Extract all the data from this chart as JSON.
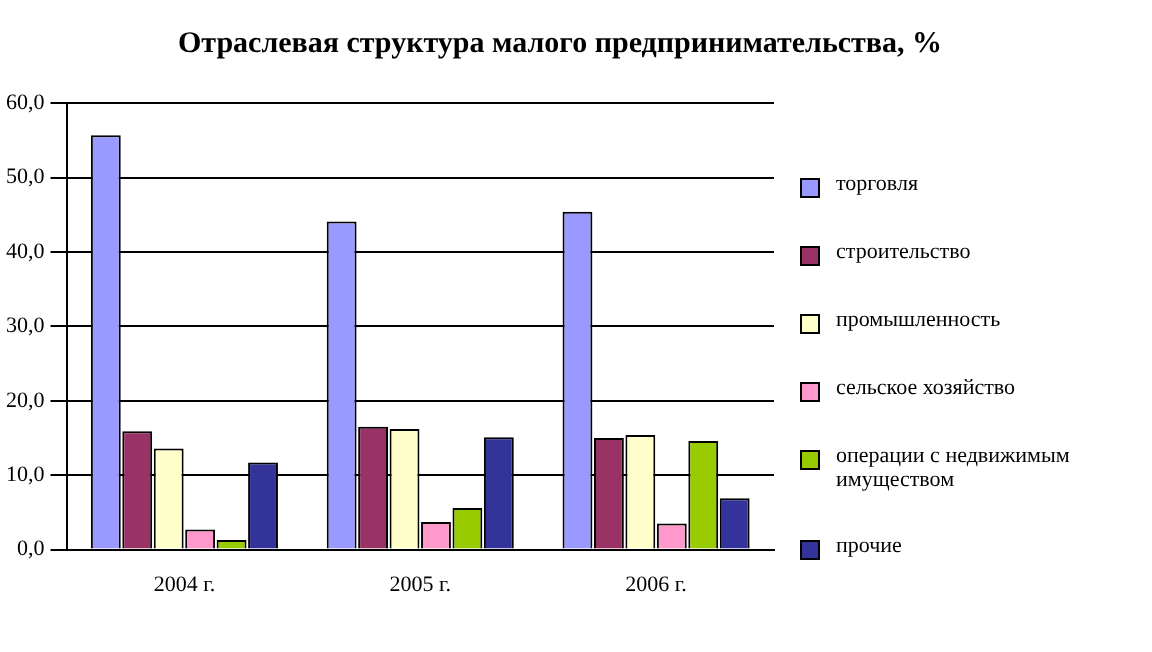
{
  "chart_data": {
    "type": "bar",
    "title": "Отраслевая структура малого предпринимательства, %",
    "categories": [
      "2004 г.",
      "2005 г.",
      "2006 г."
    ],
    "series": [
      {
        "name": "торговля",
        "color": "#9999ff",
        "values": [
          55.7,
          44.1,
          45.4
        ]
      },
      {
        "name": "строительство",
        "color": "#993366",
        "values": [
          15.9,
          16.5,
          15.0
        ]
      },
      {
        "name": "промышленность",
        "color": "#ffffcc",
        "values": [
          13.6,
          16.2,
          15.4
        ]
      },
      {
        "name": "сельское хозяйство",
        "color": "#ff99cc",
        "values": [
          2.7,
          3.7,
          3.5
        ]
      },
      {
        "name": "операции с недвижимым имуществом",
        "color": "#99cc00",
        "values": [
          1.3,
          5.6,
          14.6
        ]
      },
      {
        "name": "прочие",
        "color": "#333399",
        "values": [
          11.7,
          15.1,
          6.9
        ]
      }
    ],
    "ylim": [
      0,
      60
    ],
    "yticks": [
      {
        "value": 0,
        "label": "0,0"
      },
      {
        "value": 10,
        "label": "10,0"
      },
      {
        "value": 20,
        "label": "20,0"
      },
      {
        "value": 30,
        "label": "30,0"
      },
      {
        "value": 40,
        "label": "40,0"
      },
      {
        "value": 50,
        "label": "50,0"
      },
      {
        "value": 60,
        "label": "60,0"
      }
    ],
    "grid": "y",
    "legend": "right"
  }
}
